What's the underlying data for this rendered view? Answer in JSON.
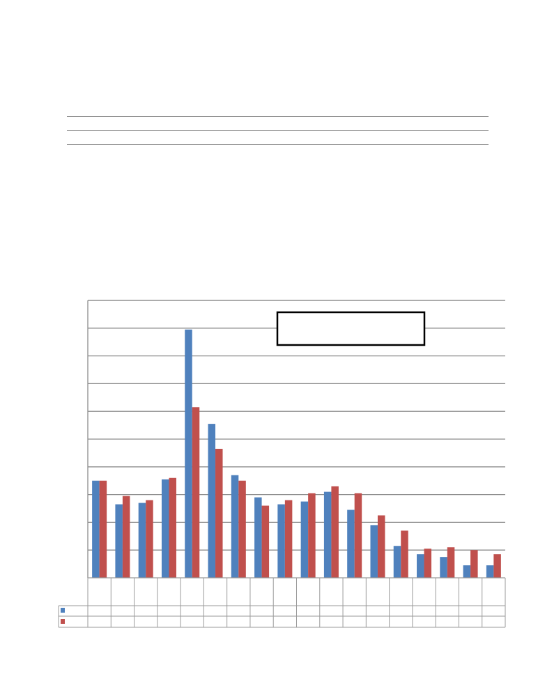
{
  "chart_data": {
    "type": "bar",
    "title": "",
    "xlabel": "",
    "ylabel": "",
    "ylim": [
      0,
      10
    ],
    "grid": true,
    "legend": "data table",
    "categories": [
      "",
      "",
      "",
      "",
      "",
      "",
      "",
      "",
      "",
      "",
      "",
      "",
      "",
      "",
      "",
      "",
      "",
      ""
    ],
    "series": [
      {
        "color": "#4F81BD",
        "values": [
          3.5,
          2.65,
          2.7,
          3.55,
          8.95,
          5.55,
          3.7,
          2.9,
          2.65,
          2.75,
          3.1,
          2.45,
          1.9,
          1.15,
          0.85,
          0.75,
          0.45,
          0.45
        ]
      },
      {
        "color": "#C0504D",
        "values": [
          3.5,
          2.95,
          2.8,
          3.6,
          6.15,
          4.65,
          3.5,
          2.6,
          2.8,
          3.05,
          3.3,
          3.05,
          2.25,
          1.7,
          1.05,
          1.1,
          1.0,
          0.85
        ]
      }
    ],
    "annotation_box": ""
  }
}
